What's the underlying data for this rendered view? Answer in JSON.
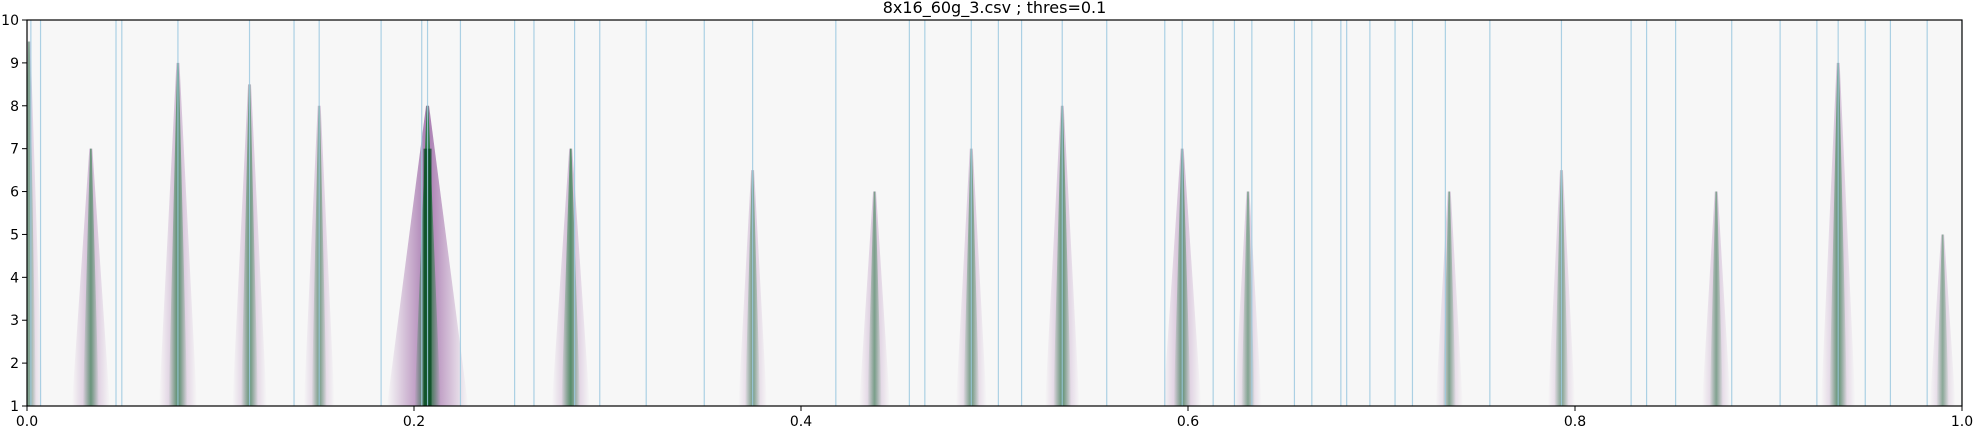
{
  "chart_data": {
    "type": "heatmap",
    "title": "8x16_60g_3.csv ; thres=0.1",
    "xlabel": "",
    "ylabel": "",
    "xlim": [
      0.0,
      1.0
    ],
    "ylim": [
      1,
      10
    ],
    "x_ticks": [
      "0.0",
      "0.2",
      "0.4",
      "0.6",
      "0.8",
      "1.0"
    ],
    "y_ticks": [
      "1",
      "2",
      "3",
      "4",
      "5",
      "6",
      "7",
      "8",
      "9",
      "10"
    ],
    "grid": false,
    "legend": "none",
    "colors": {
      "background": "#f7f7f7",
      "positive": "#1b7837",
      "negative": "#762a83",
      "marker_line": "#9ecae1"
    },
    "peaks": [
      {
        "x": 0.001,
        "positive": 0.35,
        "negative": 0.1,
        "height": 9.5
      },
      {
        "x": 0.033,
        "positive": 0.45,
        "negative": 0.25,
        "height": 7.0
      },
      {
        "x": 0.078,
        "positive": 0.6,
        "negative": 0.25,
        "height": 9.0
      },
      {
        "x": 0.115,
        "positive": 0.5,
        "negative": 0.2,
        "height": 8.5
      },
      {
        "x": 0.151,
        "positive": 0.4,
        "negative": 0.15,
        "height": 8.0
      },
      {
        "x": 0.207,
        "positive": 1.0,
        "negative": 0.85,
        "height": 8.0
      },
      {
        "x": 0.281,
        "positive": 0.6,
        "negative": 0.25,
        "height": 7.0
      },
      {
        "x": 0.375,
        "positive": 0.4,
        "negative": 0.12,
        "height": 6.5
      },
      {
        "x": 0.438,
        "positive": 0.35,
        "negative": 0.15,
        "height": 6.0
      },
      {
        "x": 0.488,
        "positive": 0.45,
        "negative": 0.15,
        "height": 7.0
      },
      {
        "x": 0.535,
        "positive": 0.55,
        "negative": 0.2,
        "height": 8.0
      },
      {
        "x": 0.597,
        "positive": 0.5,
        "negative": 0.25,
        "height": 7.0
      },
      {
        "x": 0.631,
        "positive": 0.3,
        "negative": 0.1,
        "height": 6.0
      },
      {
        "x": 0.735,
        "positive": 0.3,
        "negative": 0.1,
        "height": 6.0
      },
      {
        "x": 0.793,
        "positive": 0.35,
        "negative": 0.1,
        "height": 6.5
      },
      {
        "x": 0.873,
        "positive": 0.3,
        "negative": 0.12,
        "height": 6.0
      },
      {
        "x": 0.936,
        "positive": 0.55,
        "negative": 0.2,
        "height": 9.0
      },
      {
        "x": 0.99,
        "positive": 0.25,
        "negative": 0.08,
        "height": 5.0
      }
    ],
    "marker_lines_x": [
      0.002,
      0.007,
      0.046,
      0.049,
      0.078,
      0.115,
      0.138,
      0.151,
      0.183,
      0.204,
      0.207,
      0.224,
      0.252,
      0.262,
      0.283,
      0.296,
      0.32,
      0.35,
      0.375,
      0.418,
      0.456,
      0.464,
      0.488,
      0.502,
      0.514,
      0.535,
      0.558,
      0.588,
      0.597,
      0.613,
      0.624,
      0.633,
      0.655,
      0.664,
      0.679,
      0.682,
      0.694,
      0.707,
      0.716,
      0.733,
      0.756,
      0.793,
      0.829,
      0.837,
      0.852,
      0.881,
      0.906,
      0.925,
      0.936,
      0.95,
      0.963,
      0.982,
      1.0
    ]
  }
}
